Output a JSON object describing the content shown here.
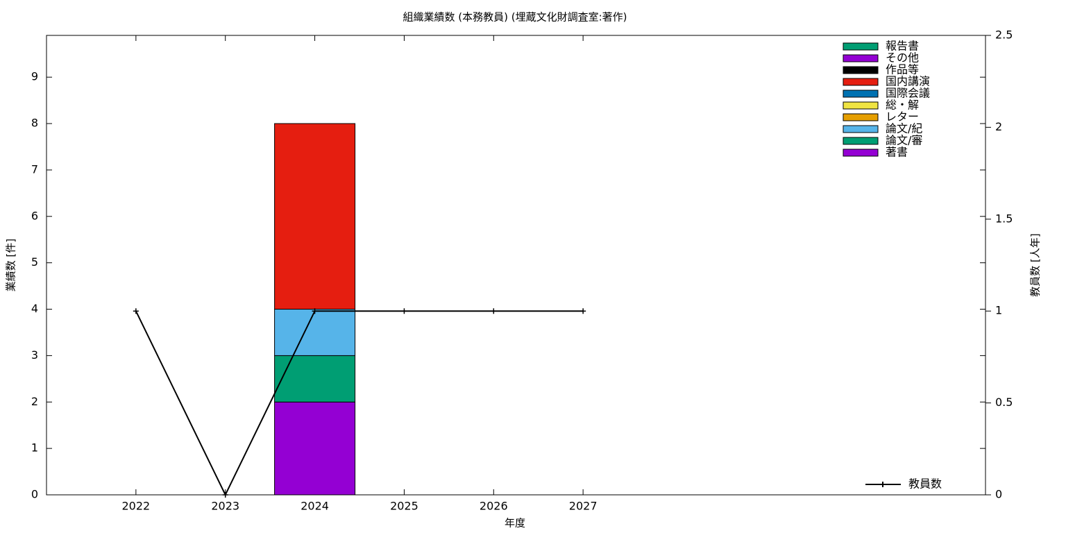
{
  "chart_data": {
    "type": "bar",
    "title": "組織業績数 (本務教員) (埋蔵文化財調査室:著作)",
    "x_label": "年度",
    "y_label": "業績数 [件]",
    "y2_label": "教員数 [人年]",
    "x": [
      2022,
      2023,
      2024,
      2025,
      2026,
      2027
    ],
    "xlim": [
      2021,
      2031.5
    ],
    "xticks": [
      2022,
      2023,
      2024,
      2025,
      2026,
      2027
    ],
    "ylim": [
      0,
      9.9
    ],
    "yticks": [
      0,
      1,
      2,
      3,
      4,
      5,
      6,
      7,
      8,
      9
    ],
    "y2lim": [
      0,
      2.5
    ],
    "y2ticks": [
      0,
      0.5,
      1,
      1.5,
      2,
      2.5
    ],
    "bar_width": 0.9,
    "stacked": true,
    "grid": false,
    "legend": "top-right",
    "line_legend": "bottom-right",
    "series": [
      {
        "name": "著書",
        "color": "#9400d3",
        "values": [
          0,
          0,
          2,
          0,
          0,
          0
        ]
      },
      {
        "name": "論文/審",
        "color": "#009e73",
        "values": [
          0,
          0,
          1,
          0,
          0,
          0
        ]
      },
      {
        "name": "論文/紀",
        "color": "#56b4e9",
        "values": [
          0,
          0,
          1,
          0,
          0,
          0
        ]
      },
      {
        "name": "レター",
        "color": "#e69f00",
        "values": [
          0,
          0,
          0,
          0,
          0,
          0
        ]
      },
      {
        "name": "総・解",
        "color": "#f0e442",
        "values": [
          0,
          0,
          0,
          0,
          0,
          0
        ]
      },
      {
        "name": "国際会議",
        "color": "#0072b2",
        "values": [
          0,
          0,
          0,
          0,
          0,
          0
        ]
      },
      {
        "name": "国内講演",
        "color": "#e51e10",
        "values": [
          0,
          0,
          4,
          0,
          0,
          0
        ]
      },
      {
        "name": "作品等",
        "color": "#000000",
        "values": [
          0,
          0,
          0,
          0,
          0,
          0
        ]
      },
      {
        "name": "その他",
        "color": "#9400d3",
        "values": [
          0,
          0,
          0,
          0,
          0,
          0
        ]
      },
      {
        "name": "報告書",
        "color": "#009e73",
        "values": [
          0,
          0,
          0,
          0,
          0,
          0
        ]
      },
      {
        "name": "教員数",
        "type": "line",
        "axis": "y2",
        "color": "#000000",
        "values": [
          1,
          0,
          1,
          1,
          1,
          1
        ]
      }
    ]
  }
}
